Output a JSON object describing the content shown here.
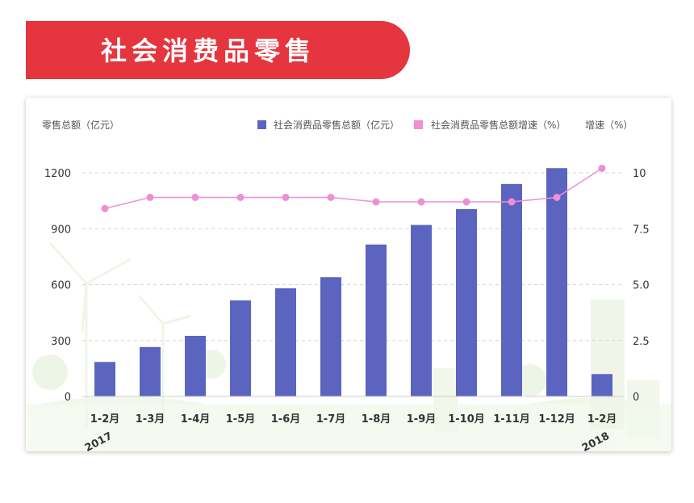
{
  "header": {
    "title": "社会消费品零售"
  },
  "chart_data": {
    "type": "bar",
    "title": "",
    "ylabel_left": "零售总额（亿元）",
    "ylabel_right": "增速（%）",
    "categories": [
      "1-2月",
      "1-3月",
      "1-4月",
      "1-5月",
      "1-6月",
      "1-7月",
      "1-8月",
      "1-9月",
      "1-10月",
      "1-11月",
      "1-12月",
      "1-2月"
    ],
    "year_labels": [
      {
        "category_index": 0,
        "text": "2017"
      },
      {
        "category_index": 11,
        "text": "2018"
      }
    ],
    "ylim_left": [
      0,
      1300
    ],
    "yticks_left": [
      0,
      300,
      600,
      900,
      1200
    ],
    "ylim_right": [
      0,
      11
    ],
    "yticks_right": [
      "0",
      "2.5",
      "5.0",
      "7.5",
      "10"
    ],
    "series": [
      {
        "name": "社会消费品零售总额（亿元）",
        "type": "bar",
        "axis": "left",
        "color": "#5b64bf",
        "values": [
          185,
          265,
          325,
          515,
          580,
          640,
          815,
          920,
          1005,
          1140,
          1225,
          120
        ]
      },
      {
        "name": "社会消费品零售总额增速（%）",
        "type": "line",
        "axis": "right",
        "color": "#f08ed4",
        "values": [
          8.4,
          8.9,
          8.9,
          8.9,
          8.9,
          8.9,
          8.7,
          8.7,
          8.7,
          8.7,
          8.9,
          10.2
        ]
      }
    ],
    "legend_position": "top",
    "grid": true
  }
}
